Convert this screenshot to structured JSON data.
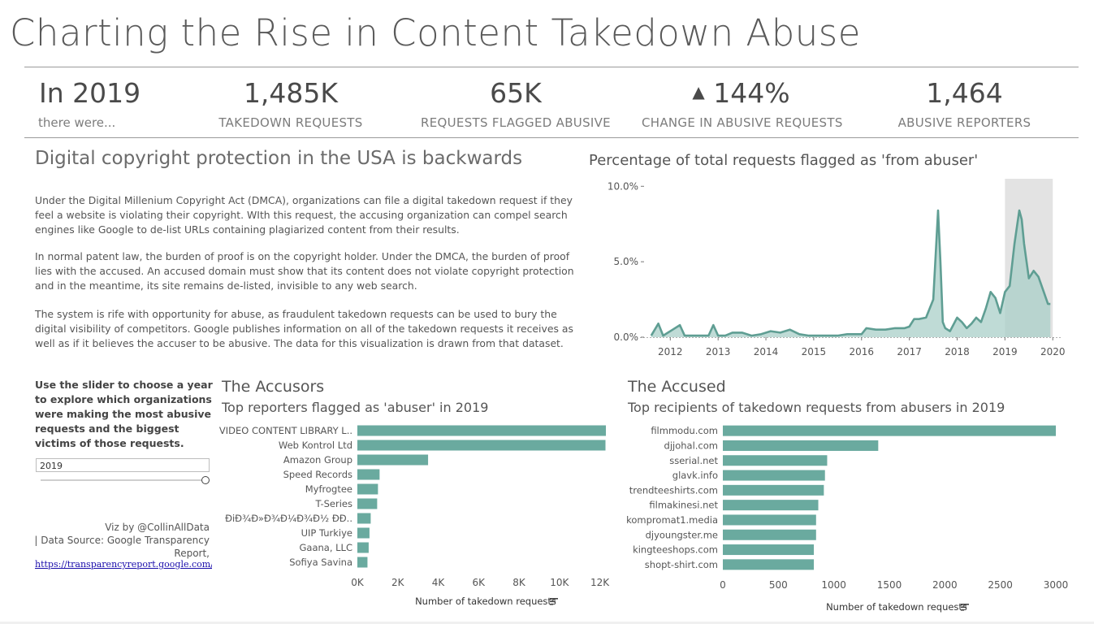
{
  "title": "Charting the Rise in Content Takedown Abuse",
  "kpis": {
    "intro_value": "In 2019",
    "intro_sub": "there were...",
    "takedown_value": "1,485K",
    "takedown_label": "TAKEDOWN REQUESTS",
    "flagged_value": "65K",
    "flagged_label": "REQUESTS FLAGGED ABUSIVE",
    "change_arrow": "▲",
    "change_value": "144%",
    "change_label": "CHANGE IN ABUSIVE REQUESTS",
    "reporters_value": "1,464",
    "reporters_label": "ABUSIVE REPORTERS"
  },
  "intro": {
    "heading": "Digital copyright protection in the USA is backwards",
    "p1": "Under the Digital Millenium Copyright Act (DMCA), organizations can file a digital takedown request if they feel a website is violating their copyright. WIth this request, the accusing organization can compel search engines like Google to de-list  URLs containing  plagiarized content from their results.",
    "p2": "In normal patent law, the burden of proof is on the copyright holder. Under the DMCA, the burden of proof lies with the accused. An accused domain must show that its content does not violate copyright protection and in the meantime, its site remains de-listed, invisible to any web search.",
    "p3": "The system is rife with opportunity for abuse, as fraudulent takedown requests can be used to bury the digital visibility of competitors. Google publishes information on all of the takedown requests it receives as well as if it believes the accuser to be abusive. The data for this visualization is drawn from that dataset."
  },
  "controls": {
    "instructions": "Use the slider to choose a year to explore which organizations were making the most abusive requests and the biggest victims of those requests.",
    "year_value": "2019"
  },
  "credits": {
    "line1": "Viz by @CollinAllData",
    "line2": "| Data Source: Google Transparency",
    "line3": "Report,",
    "link": "https://transparencyreport.google.com/copyright"
  },
  "colors": {
    "teal": "#6aaa9f",
    "teal_dark": "#5f9e93",
    "teal_fill": "#a9cfc8",
    "highlight": "#e3e3e3"
  },
  "accusors": {
    "title": "The Accusors",
    "subtitle": "Top reporters flagged as 'abuser' in 2019",
    "axis_label": "Number of takedown requests",
    "sort_icon": "sort-icon"
  },
  "accused": {
    "title": "The Accused",
    "subtitle": "Top recipients of takedown requests from abusers in 2019",
    "axis_label": "Number of takedown requests",
    "sort_icon": "sort-icon"
  },
  "timeline": {
    "title": "Percentage of total requests flagged as 'from abuser'"
  },
  "chart_data": [
    {
      "type": "area",
      "title": "Percentage of total requests flagged as 'from abuser'",
      "x_ticks": [
        "2012",
        "2013",
        "2014",
        "2015",
        "2016",
        "2017",
        "2018",
        "2019",
        "2020"
      ],
      "y_ticks": [
        "0.0%",
        "5.0%",
        "10.0%"
      ],
      "ylim": [
        0,
        10.5
      ],
      "highlight_range": [
        2019.0,
        2020.0
      ],
      "x": [
        2011.6,
        2011.75,
        2011.85,
        2011.95,
        2012.05,
        2012.2,
        2012.3,
        2012.45,
        2012.6,
        2012.8,
        2012.9,
        2013.0,
        2013.15,
        2013.3,
        2013.5,
        2013.7,
        2013.9,
        2014.1,
        2014.3,
        2014.5,
        2014.7,
        2014.9,
        2015.1,
        2015.3,
        2015.5,
        2015.7,
        2015.9,
        2016.0,
        2016.1,
        2016.3,
        2016.5,
        2016.7,
        2016.9,
        2017.0,
        2017.1,
        2017.2,
        2017.35,
        2017.5,
        2017.6,
        2017.65,
        2017.7,
        2017.75,
        2017.85,
        2018.0,
        2018.1,
        2018.2,
        2018.3,
        2018.4,
        2018.5,
        2018.6,
        2018.7,
        2018.8,
        2018.9,
        2019.0,
        2019.1,
        2019.2,
        2019.3,
        2019.35,
        2019.4,
        2019.5,
        2019.6,
        2019.7,
        2019.8,
        2019.9,
        2019.95
      ],
      "y": [
        0.1,
        0.9,
        0.1,
        0.3,
        0.5,
        0.8,
        0.1,
        0.1,
        0.1,
        0.1,
        0.8,
        0.1,
        0.1,
        0.3,
        0.3,
        0.1,
        0.2,
        0.4,
        0.3,
        0.5,
        0.2,
        0.1,
        0.1,
        0.1,
        0.1,
        0.2,
        0.2,
        0.2,
        0.6,
        0.5,
        0.5,
        0.6,
        0.6,
        0.7,
        1.2,
        1.2,
        1.3,
        2.5,
        8.4,
        5.0,
        1.0,
        0.6,
        0.4,
        1.3,
        1.0,
        0.6,
        0.9,
        1.3,
        1.0,
        1.9,
        3.0,
        2.6,
        1.6,
        3.0,
        3.4,
        6.2,
        8.4,
        7.8,
        6.2,
        3.9,
        4.4,
        4.0,
        3.1,
        2.2,
        2.2
      ]
    },
    {
      "type": "bar",
      "orientation": "horizontal",
      "title": "Top reporters flagged as 'abuser' in 2019",
      "xlabel": "Number of takedown requests",
      "categories": [
        "VIDEO CONTENT LIBRARY L..",
        "Web Kontrol Ltd",
        "Amazon Group",
        "Speed Records",
        "Myfrogtee",
        "T-Series",
        "ĐiĐ¾Đ»Đ¾Đ¼Đ¾Đ½ ĐĐ..",
        "UIP Turkiye",
        "Gaana, LLC",
        "Sofiya Savina"
      ],
      "values": [
        12300,
        12280,
        3500,
        1100,
        1020,
        980,
        660,
        600,
        560,
        500
      ],
      "xlim": [
        0,
        12300
      ],
      "x_ticks": [
        0,
        2000,
        4000,
        6000,
        8000,
        10000,
        12000
      ],
      "x_tick_labels": [
        "0K",
        "2K",
        "4K",
        "6K",
        "8K",
        "10K",
        "12K"
      ]
    },
    {
      "type": "bar",
      "orientation": "horizontal",
      "title": "Top recipients of takedown requests from abusers in 2019",
      "xlabel": "Number of takedown requests",
      "categories": [
        "filmmodu.com",
        "djjohal.com",
        "sserial.net",
        "glavk.info",
        "trendteeshirts.com",
        "filmakinesi.net",
        "kompromat1.media",
        "djyoungster.me",
        "kingteeshops.com",
        "shopt-shirt.com"
      ],
      "values": [
        3000,
        1400,
        940,
        920,
        910,
        860,
        840,
        840,
        820,
        820
      ],
      "xlim": [
        0,
        3000
      ],
      "x_ticks": [
        0,
        500,
        1000,
        1500,
        2000,
        2500,
        3000
      ],
      "x_tick_labels": [
        "0",
        "500",
        "1000",
        "1500",
        "2000",
        "2500",
        "3000"
      ]
    }
  ]
}
